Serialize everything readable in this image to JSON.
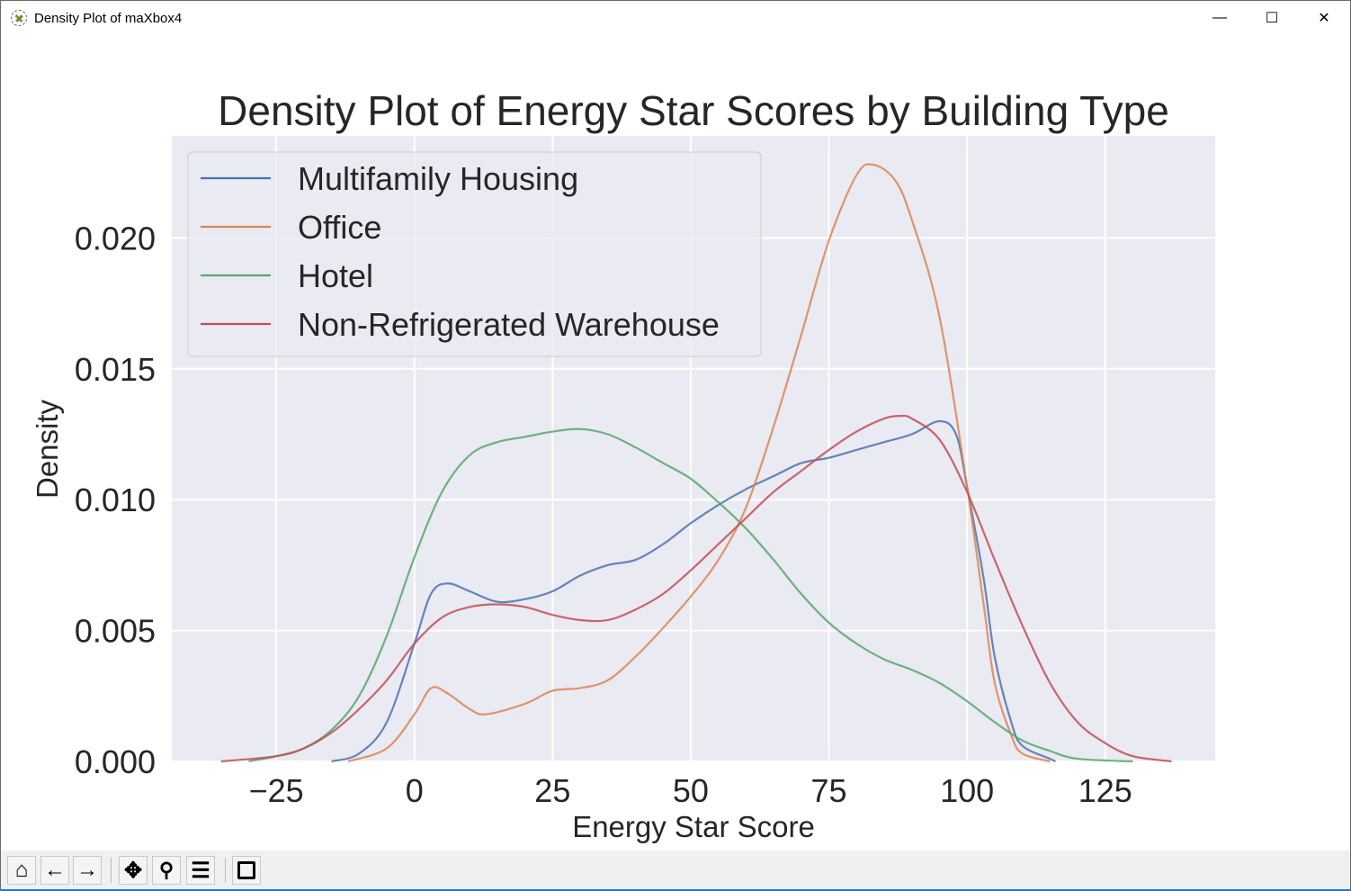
{
  "window": {
    "title": "Density Plot of maXbox4",
    "minimize_label": "—",
    "maximize_label": "☐",
    "close_label": "✕"
  },
  "toolbar": {
    "buttons": [
      {
        "name": "home",
        "glyph": "⌂"
      },
      {
        "name": "back",
        "glyph": "🡐"
      },
      {
        "name": "forward",
        "glyph": "🡒"
      },
      {
        "name": "pan",
        "glyph": "✥"
      },
      {
        "name": "zoom",
        "glyph": "🔍"
      },
      {
        "name": "configure-subplots",
        "glyph": "☰"
      },
      {
        "name": "save",
        "glyph": "💾"
      }
    ]
  },
  "chart_data": {
    "type": "line",
    "title": "Density Plot of Energy Star Scores by Building Type",
    "xlabel": "Energy Star Score",
    "ylabel": "Density",
    "xlim": [
      -43.9,
      144.9
    ],
    "ylim": [
      0,
      0.0239
    ],
    "xticks": [
      -25,
      0,
      25,
      50,
      75,
      100,
      125
    ],
    "xtick_labels": [
      "−25",
      "0",
      "25",
      "50",
      "75",
      "100",
      "125"
    ],
    "yticks": [
      0,
      0.005,
      0.01,
      0.015,
      0.02
    ],
    "ytick_labels": [
      "0.000",
      "0.005",
      "0.010",
      "0.015",
      "0.020"
    ],
    "grid": true,
    "background": "#eaeaf2",
    "legend_position": "top-left",
    "series": [
      {
        "name": "Multifamily Housing",
        "color": "#4c72b0",
        "x": [
          -15,
          -10,
          -5,
          0,
          3,
          6,
          10,
          15,
          20,
          25,
          30,
          35,
          40,
          45,
          50,
          55,
          60,
          65,
          70,
          75,
          80,
          85,
          90,
          95,
          98,
          100,
          103,
          105,
          108,
          110,
          115,
          116
        ],
        "y": [
          0,
          0.0003,
          0.0015,
          0.0045,
          0.0064,
          0.0068,
          0.0065,
          0.0061,
          0.0062,
          0.0065,
          0.0071,
          0.0075,
          0.0077,
          0.0083,
          0.0091,
          0.0098,
          0.0104,
          0.0109,
          0.0114,
          0.0116,
          0.0119,
          0.0122,
          0.0125,
          0.013,
          0.0125,
          0.0105,
          0.007,
          0.004,
          0.0015,
          0.0006,
          0.0001,
          0
        ]
      },
      {
        "name": "Office",
        "color": "#dd8452",
        "x": [
          -12,
          -5,
          0,
          3,
          6,
          10,
          13,
          20,
          25,
          30,
          35,
          40,
          45,
          50,
          55,
          60,
          65,
          70,
          75,
          80,
          83,
          87,
          90,
          95,
          100,
          103,
          105,
          108,
          110,
          115
        ],
        "y": [
          0,
          0.0005,
          0.0018,
          0.0028,
          0.0026,
          0.002,
          0.0018,
          0.0022,
          0.0027,
          0.0028,
          0.0031,
          0.004,
          0.0051,
          0.0063,
          0.0077,
          0.0097,
          0.0128,
          0.0163,
          0.0199,
          0.0224,
          0.0228,
          0.0222,
          0.0207,
          0.017,
          0.0105,
          0.006,
          0.003,
          0.001,
          0.0003,
          0
        ]
      },
      {
        "name": "Hotel",
        "color": "#55a868",
        "x": [
          -30,
          -25,
          -20,
          -15,
          -10,
          -5,
          0,
          5,
          10,
          15,
          20,
          25,
          30,
          35,
          40,
          45,
          50,
          55,
          60,
          65,
          70,
          75,
          80,
          85,
          90,
          95,
          100,
          105,
          110,
          115,
          120,
          130
        ],
        "y": [
          0,
          0.0002,
          0.0005,
          0.0012,
          0.0025,
          0.0048,
          0.0078,
          0.0103,
          0.0117,
          0.0122,
          0.0124,
          0.0126,
          0.0127,
          0.0125,
          0.012,
          0.0114,
          0.0108,
          0.0099,
          0.0089,
          0.0077,
          0.0064,
          0.0053,
          0.0045,
          0.0039,
          0.0035,
          0.003,
          0.0023,
          0.0015,
          0.0008,
          0.0004,
          0.0001,
          0
        ]
      },
      {
        "name": "Non-Refrigerated Warehouse",
        "color": "#c44e52",
        "x": [
          -35,
          -25,
          -20,
          -15,
          -10,
          -5,
          0,
          5,
          10,
          15,
          20,
          25,
          30,
          35,
          40,
          45,
          50,
          55,
          60,
          65,
          70,
          75,
          80,
          85,
          88,
          90,
          95,
          100,
          105,
          110,
          115,
          120,
          125,
          130,
          137
        ],
        "y": [
          0,
          0.0002,
          0.0005,
          0.0011,
          0.002,
          0.0031,
          0.0045,
          0.0055,
          0.0059,
          0.006,
          0.0059,
          0.0056,
          0.0054,
          0.0054,
          0.0058,
          0.0064,
          0.0073,
          0.0083,
          0.0093,
          0.0103,
          0.0111,
          0.0119,
          0.0126,
          0.0131,
          0.0132,
          0.0131,
          0.0123,
          0.0103,
          0.0077,
          0.0052,
          0.003,
          0.0015,
          0.0007,
          0.0002,
          0
        ]
      }
    ]
  }
}
